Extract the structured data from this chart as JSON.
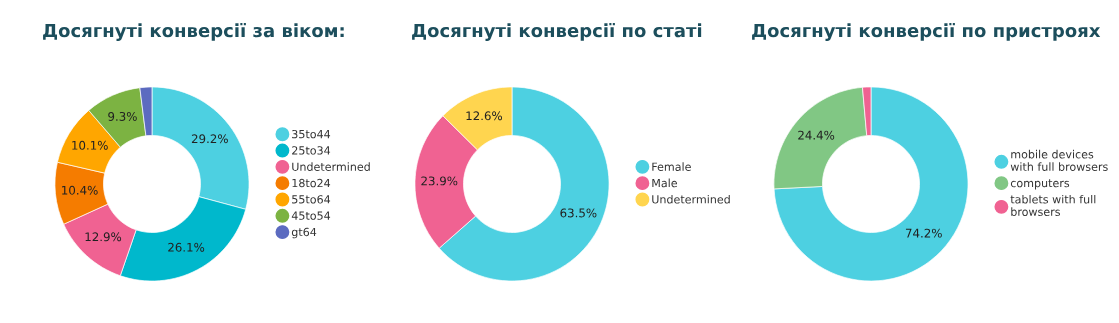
{
  "chart_data": [
    {
      "type": "donut",
      "title": "Досягнуті конверсії за віком:",
      "categories": [
        "35to44",
        "25to34",
        "Undetermined",
        "18to24",
        "55to64",
        "45to54",
        "gt64"
      ],
      "values": [
        29.2,
        26.1,
        12.9,
        10.4,
        10.1,
        9.3,
        2.0
      ],
      "colors": [
        "#4dd0e1",
        "#00b8cc",
        "#f06292",
        "#f57c00",
        "#ffa600",
        "#7cb342",
        "#5c6bc0"
      ],
      "value_labels": [
        "29.2%",
        "26.1%",
        "12.9%",
        "10.4%",
        "10.1%",
        "9.3%",
        null
      ],
      "legend": "right"
    },
    {
      "type": "donut",
      "title": "Досягнуті конверсії по статі",
      "categories": [
        "Female",
        "Male",
        "Undetermined"
      ],
      "values": [
        63.5,
        23.9,
        12.6
      ],
      "colors": [
        "#4dd0e1",
        "#f06292",
        "#ffd54f"
      ],
      "value_labels": [
        "63.5%",
        "23.9%",
        "12.6%"
      ],
      "legend": "right"
    },
    {
      "type": "donut",
      "title": "Досягнуті конверсії по пристроях",
      "categories": [
        "mobile devices with full browsers",
        "computers",
        "tablets with full browsers"
      ],
      "values": [
        74.2,
        24.4,
        1.4
      ],
      "colors": [
        "#4dd0e1",
        "#81c784",
        "#f06292"
      ],
      "value_labels": [
        "74.2%",
        "24.4%",
        null
      ],
      "legend": "right"
    }
  ]
}
